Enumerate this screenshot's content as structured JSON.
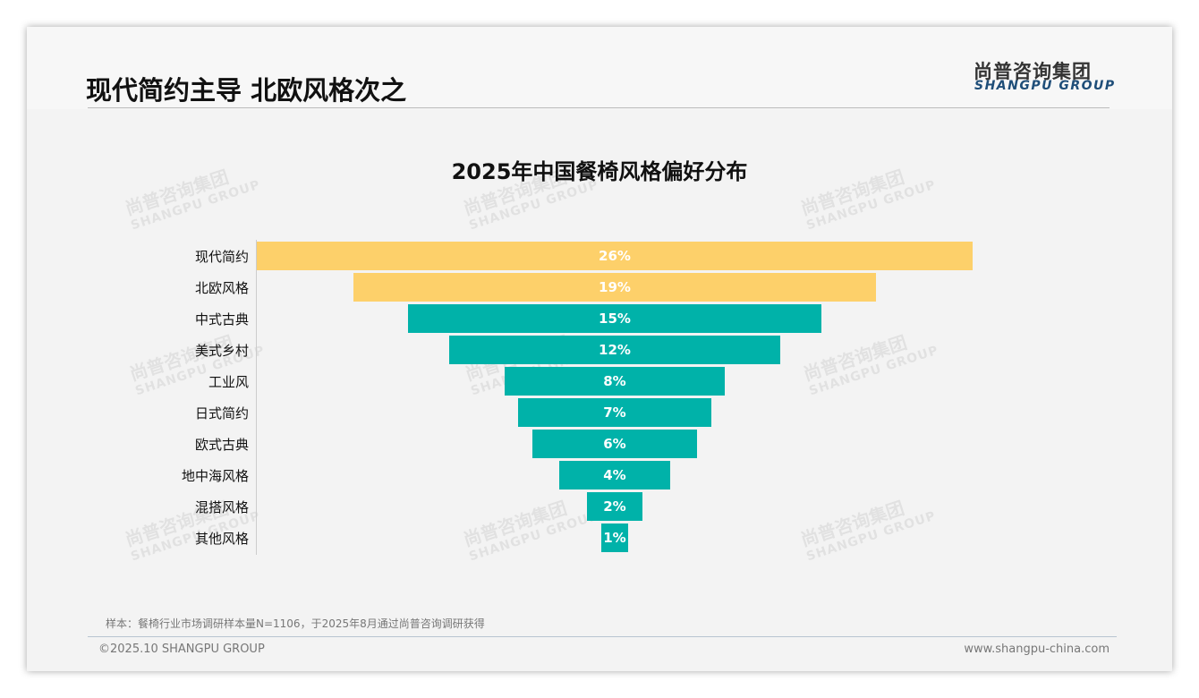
{
  "header": {
    "title": "现代简约主导 北欧风格次之",
    "logo_cn": "尚普咨询集团",
    "logo_en": "SHANGPU GROUP"
  },
  "watermark": {
    "cn": "尚普咨询集团",
    "en": "SHANGPU GROUP"
  },
  "chart_data": {
    "type": "bar",
    "orientation": "horizontal-funnel",
    "title": "2025年中国餐椅风格偏好分布",
    "categories": [
      "现代简约",
      "北欧风格",
      "中式古典",
      "美式乡村",
      "工业风",
      "日式简约",
      "欧式古典",
      "地中海风格",
      "混搭风格",
      "其他风格"
    ],
    "values": [
      26,
      19,
      15,
      12,
      8,
      7,
      6,
      4,
      2,
      1
    ],
    "data_labels": [
      "26%",
      "19%",
      "15%",
      "12%",
      "8%",
      "7%",
      "6%",
      "4%",
      "2%",
      "1%"
    ],
    "colors": [
      "#FDD06A",
      "#FDD06A",
      "#00B2A9",
      "#00B2A9",
      "#00B2A9",
      "#00B2A9",
      "#00B2A9",
      "#00B2A9",
      "#00B2A9",
      "#00B2A9"
    ],
    "unit": "%"
  },
  "footer": {
    "note": "样本：餐椅行业市场调研样本量N=1106，于2025年8月通过尚普咨询调研获得",
    "copyright": "©2025.10 SHANGPU GROUP",
    "url": "www.shangpu-china.com"
  }
}
